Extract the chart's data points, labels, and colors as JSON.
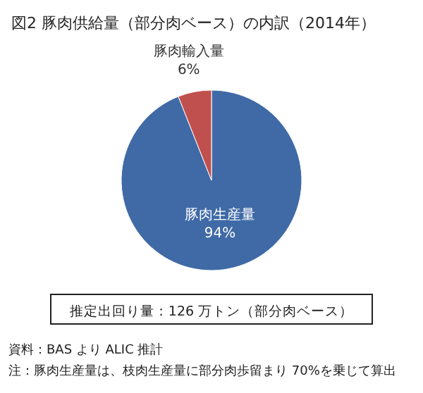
{
  "chart_data": {
    "type": "pie",
    "title": "図2  豚肉供給量（部分肉ベース）の内訳（2014年）",
    "categories": [
      "豚肉生産量",
      "豚肉輸入量"
    ],
    "values": [
      94,
      6
    ],
    "value_labels": [
      "94%",
      "6%"
    ],
    "colors": [
      "#3f6aa6",
      "#c0504d"
    ],
    "annotations": [
      "推定出回り量：126 万トン（部分肉ベース）",
      "資料：BAS より ALIC 推計",
      "注：豚肉生産量は、枝肉生産量に部分肉歩留まり 70%を乗じて算出"
    ]
  }
}
